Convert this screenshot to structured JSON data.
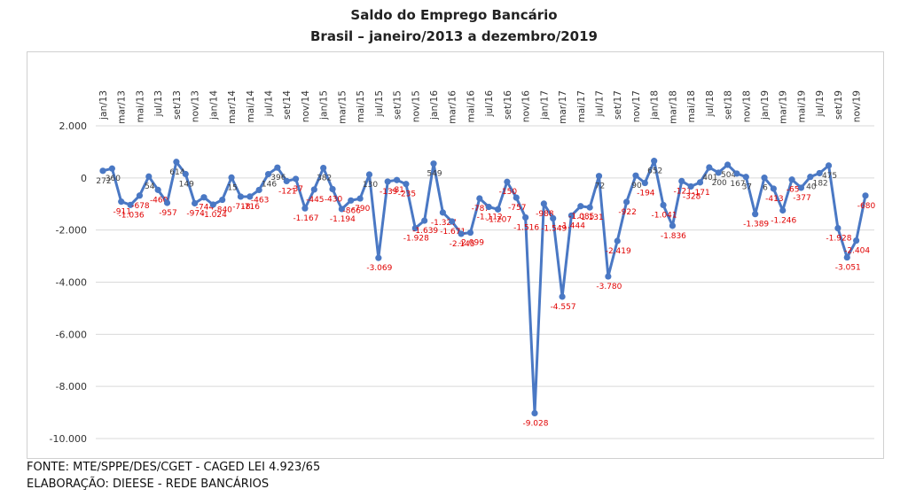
{
  "header": {
    "title_line1": "Saldo do Emprego Bancário",
    "title_line2": "Brasil – janeiro/2013 a dezembro/2019"
  },
  "footer": {
    "source": "FONTE: MTE/SPPE/DES/CGET - CAGED LEI 4.923/65",
    "elaboration": "ELABORAÇÃO: DIEESE - REDE BANCÁRIOS"
  },
  "colors": {
    "line": "#4a78c4",
    "marker": "#4a78c4",
    "positive_label": "#404040",
    "negative_label": "#e00000",
    "grid": "#d9d9d9",
    "axis_text": "#333333"
  },
  "chart_data": {
    "type": "line",
    "title": "Saldo do Emprego Bancário — Brasil – janeiro/2013 a dezembro/2019",
    "ylim": [
      -10000,
      2000
    ],
    "y_ticks": [
      2000,
      0,
      -2000,
      -4000,
      -6000,
      -8000,
      -10000
    ],
    "y_tick_labels": [
      "2.000",
      "0",
      "-2.000",
      "-4.000",
      "-6.000",
      "-8.000",
      "-10.000"
    ],
    "grid": true,
    "legend": "none",
    "x_tick_labels": [
      "jan/13",
      "mar/13",
      "mai/13",
      "jul/13",
      "set/13",
      "nov/13",
      "jan/14",
      "mar/14",
      "mai/14",
      "jul/14",
      "set/14",
      "nov/14",
      "jan/15",
      "mar/15",
      "mai/15",
      "jul/15",
      "set/15",
      "nov/15",
      "jan/16",
      "mar/16",
      "mai/16",
      "jul/16",
      "set/16",
      "nov/16",
      "jan/17",
      "mar/17",
      "mai/17",
      "jul/17",
      "set/17",
      "nov/17",
      "jan/18",
      "mar/18",
      "mai/18",
      "jul/18",
      "set/18",
      "nov/18",
      "jan/19",
      "mar/19",
      "mai/19",
      "jul/19",
      "set/19",
      "nov/19"
    ],
    "values": [
      272,
      360,
      -911,
      -1036,
      -678,
      54,
      -460,
      -957,
      614,
      149,
      -974,
      -744,
      -1024,
      -840,
      15,
      -718,
      -716,
      -463,
      146,
      396,
      -121,
      -37,
      -1167,
      -445,
      382,
      -430,
      -1194,
      -866,
      -790,
      130,
      -3069,
      -139,
      -81,
      -235,
      -1928,
      -1639,
      549,
      -1327,
      -1671,
      -2145,
      -2099,
      -787,
      -1112,
      -1207,
      -150,
      -757,
      -1516,
      -9028,
      -988,
      -1549,
      -4557,
      -1444,
      -1085,
      -1131,
      72,
      -3780,
      -2419,
      -922,
      90,
      -194,
      652,
      -1041,
      -1836,
      -121,
      -328,
      -171,
      401,
      200,
      504,
      167,
      37,
      -1389,
      6,
      -413,
      -1246,
      -65,
      -377,
      40,
      182,
      475,
      -1928,
      -3051,
      -2404,
      -680
    ],
    "point_labels": [
      "272",
      "360",
      "-911",
      "-1.036",
      "-678",
      "54",
      "-460",
      "-957",
      "614",
      "149",
      "-974",
      "-744",
      "-1.024",
      "-840",
      "15",
      "-718",
      "-716",
      "-463",
      "146",
      "396",
      "-121",
      "-37",
      "-1.167",
      "-445",
      "382",
      "-430",
      "-1.194",
      "-866",
      "-790",
      "130",
      "-3.069",
      "-139",
      "-81",
      "-235",
      "-1.928",
      "-1.639",
      "549",
      "-1.327",
      "-1.671",
      "-2.145",
      "-2.099",
      "-787",
      "-1.112",
      "-1.207",
      "-150",
      "-757",
      "-1.516",
      "-9.028",
      "-988",
      "-1.549",
      "-4.557",
      "-1.444",
      "-1.085",
      "-1.131",
      "72",
      "-3.780",
      "-2.419",
      "-922",
      "90",
      "-194",
      "652",
      "-1.041",
      "-1.836",
      "-121",
      "-328",
      "-171",
      "401",
      "200",
      "504",
      "167",
      "37",
      "-1.389",
      "6",
      "-413",
      "-1.246",
      "-65",
      "-377",
      "40",
      "182",
      "475",
      "-1.928",
      "-3.051",
      "-2.404",
      "-680"
    ]
  }
}
